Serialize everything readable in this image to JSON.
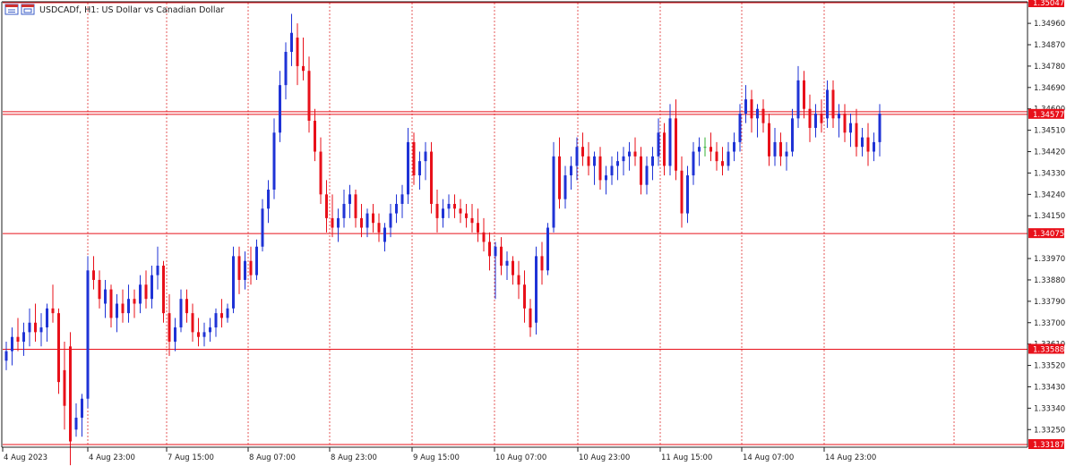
{
  "header": {
    "symbol_text": "USDCADf, H1:  US Dollar vs Canadian Dollar",
    "icon": "chart-window-icon"
  },
  "colors": {
    "bull": "#1f33d6",
    "bear": "#e8101a",
    "doji": "#33b033",
    "level": "#e8101a",
    "grid": "#e03030",
    "axis": "#1e1e1e",
    "background": "#ffffff"
  },
  "chart_data": {
    "type": "candlestick",
    "timeframe": "H1",
    "ylim": [
      1.33187,
      1.35047
    ],
    "grid": "dashed vertical lines at date labels",
    "y_ticks": [
      "1.34960",
      "1.34870",
      "1.34780",
      "1.34690",
      "1.34600",
      "1.34510",
      "1.34420",
      "1.34330",
      "1.34240",
      "1.34150",
      "1.33970",
      "1.33880",
      "1.33790",
      "1.33700",
      "1.33610",
      "1.33520",
      "1.33430",
      "1.33340",
      "1.33250"
    ],
    "x_labels": [
      "4 Aug 2023",
      "4 Aug 23:00",
      "7 Aug 15:00",
      "8 Aug 07:00",
      "8 Aug 23:00",
      "9 Aug 15:00",
      "10 Aug 07:00",
      "10 Aug 23:00",
      "11 Aug 15:00",
      "14 Aug 07:00",
      "14 Aug 23:00"
    ],
    "levels": [
      {
        "label": "1.35047",
        "value": 1.35047
      },
      {
        "label": "1.34577",
        "value": 1.34577
      },
      {
        "label": "1.34075",
        "value": 1.34075
      },
      {
        "label": "1.33588",
        "value": 1.33588
      },
      {
        "label": "1.33187",
        "value": 1.33187
      }
    ],
    "candles": [
      [
        1.3354,
        1.3362,
        1.335,
        1.3358
      ],
      [
        1.3358,
        1.3368,
        1.3352,
        1.3364
      ],
      [
        1.3364,
        1.3372,
        1.3358,
        1.3362
      ],
      [
        1.3362,
        1.337,
        1.3356,
        1.3366
      ],
      [
        1.3366,
        1.3376,
        1.336,
        1.337
      ],
      [
        1.337,
        1.3378,
        1.3362,
        1.3366
      ],
      [
        1.3366,
        1.3374,
        1.336,
        1.3368
      ],
      [
        1.3368,
        1.3378,
        1.3362,
        1.3376
      ],
      [
        1.3376,
        1.3386,
        1.337,
        1.3374
      ],
      [
        1.3374,
        1.3376,
        1.334,
        1.3345
      ],
      [
        1.335,
        1.3362,
        1.3325,
        1.3335
      ],
      [
        1.336,
        1.3366,
        1.331,
        1.332
      ],
      [
        1.3325,
        1.3336,
        1.3322,
        1.333
      ],
      [
        1.333,
        1.334,
        1.3322,
        1.3338
      ],
      [
        1.3338,
        1.3398,
        1.3334,
        1.3392
      ],
      [
        1.3392,
        1.3398,
        1.3384,
        1.3388
      ],
      [
        1.3388,
        1.3392,
        1.3376,
        1.338
      ],
      [
        1.3378,
        1.3388,
        1.3372,
        1.3384
      ],
      [
        1.3384,
        1.3386,
        1.3368,
        1.3372
      ],
      [
        1.3372,
        1.3382,
        1.3366,
        1.3378
      ],
      [
        1.3378,
        1.3384,
        1.337,
        1.3374
      ],
      [
        1.3374,
        1.3386,
        1.337,
        1.338
      ],
      [
        1.338,
        1.3384,
        1.3372,
        1.3378
      ],
      [
        1.3378,
        1.339,
        1.3374,
        1.3386
      ],
      [
        1.3386,
        1.3392,
        1.3376,
        1.338
      ],
      [
        1.338,
        1.3394,
        1.3376,
        1.339
      ],
      [
        1.339,
        1.3402,
        1.3384,
        1.3394
      ],
      [
        1.3394,
        1.3396,
        1.337,
        1.3374
      ],
      [
        1.3374,
        1.3382,
        1.3356,
        1.3362
      ],
      [
        1.3362,
        1.3372,
        1.3358,
        1.3368
      ],
      [
        1.3368,
        1.3384,
        1.3366,
        1.338
      ],
      [
        1.338,
        1.3384,
        1.337,
        1.3374
      ],
      [
        1.3374,
        1.3378,
        1.3362,
        1.3366
      ],
      [
        1.3366,
        1.3372,
        1.336,
        1.3364
      ],
      [
        1.3364,
        1.337,
        1.336,
        1.3366
      ],
      [
        1.3366,
        1.3372,
        1.3362,
        1.3368
      ],
      [
        1.3368,
        1.3376,
        1.3364,
        1.3374
      ],
      [
        1.3374,
        1.338,
        1.3368,
        1.3372
      ],
      [
        1.3372,
        1.3378,
        1.337,
        1.3376
      ],
      [
        1.3376,
        1.3402,
        1.3374,
        1.3398
      ],
      [
        1.3398,
        1.3402,
        1.3382,
        1.3388
      ],
      [
        1.3388,
        1.34,
        1.3384,
        1.3396
      ],
      [
        1.3396,
        1.3402,
        1.3386,
        1.339
      ],
      [
        1.339,
        1.3405,
        1.3388,
        1.3402
      ],
      [
        1.3402,
        1.3422,
        1.34,
        1.3418
      ],
      [
        1.3418,
        1.343,
        1.3412,
        1.3426
      ],
      [
        1.3426,
        1.3456,
        1.3422,
        1.345
      ],
      [
        1.345,
        1.3476,
        1.3446,
        1.347
      ],
      [
        1.347,
        1.3488,
        1.3464,
        1.3484
      ],
      [
        1.3484,
        1.35,
        1.3478,
        1.3492
      ],
      [
        1.349,
        1.3496,
        1.347,
        1.3478
      ],
      [
        1.3478,
        1.349,
        1.3472,
        1.3476
      ],
      [
        1.3476,
        1.3482,
        1.345,
        1.3455
      ],
      [
        1.3455,
        1.346,
        1.3438,
        1.3442
      ],
      [
        1.3442,
        1.3448,
        1.342,
        1.3424
      ],
      [
        1.3424,
        1.343,
        1.3408,
        1.3414
      ],
      [
        1.3414,
        1.3424,
        1.3406,
        1.341
      ],
      [
        1.341,
        1.3418,
        1.3404,
        1.3414
      ],
      [
        1.3414,
        1.3426,
        1.341,
        1.342
      ],
      [
        1.342,
        1.3428,
        1.3414,
        1.3424
      ],
      [
        1.3424,
        1.3426,
        1.341,
        1.3414
      ],
      [
        1.3414,
        1.342,
        1.3406,
        1.341
      ],
      [
        1.341,
        1.3418,
        1.3406,
        1.3416
      ],
      [
        1.3416,
        1.342,
        1.3408,
        1.3412
      ],
      [
        1.3412,
        1.3416,
        1.3404,
        1.3408
      ],
      [
        1.3404,
        1.3412,
        1.34,
        1.341
      ],
      [
        1.341,
        1.342,
        1.3406,
        1.3416
      ],
      [
        1.3416,
        1.3424,
        1.3412,
        1.342
      ],
      [
        1.342,
        1.3428,
        1.3414,
        1.3424
      ],
      [
        1.3424,
        1.3452,
        1.342,
        1.3446
      ],
      [
        1.3446,
        1.345,
        1.3428,
        1.3432
      ],
      [
        1.3432,
        1.3442,
        1.3426,
        1.3438
      ],
      [
        1.3438,
        1.3446,
        1.343,
        1.3442
      ],
      [
        1.3442,
        1.3446,
        1.3416,
        1.342
      ],
      [
        1.342,
        1.3426,
        1.3408,
        1.3414
      ],
      [
        1.3414,
        1.3422,
        1.341,
        1.3418
      ],
      [
        1.3418,
        1.3424,
        1.3414,
        1.342
      ],
      [
        1.342,
        1.3424,
        1.3414,
        1.3418
      ],
      [
        1.3418,
        1.3422,
        1.3412,
        1.3416
      ],
      [
        1.3416,
        1.342,
        1.341,
        1.3414
      ],
      [
        1.3414,
        1.342,
        1.3408,
        1.3412
      ],
      [
        1.3412,
        1.3418,
        1.3404,
        1.3408
      ],
      [
        1.3408,
        1.3414,
        1.34,
        1.3404
      ],
      [
        1.3404,
        1.3408,
        1.3392,
        1.3398
      ],
      [
        1.3398,
        1.3404,
        1.338,
        1.3402
      ],
      [
        1.3402,
        1.3406,
        1.339,
        1.3394
      ],
      [
        1.3394,
        1.34,
        1.3388,
        1.3396
      ],
      [
        1.3396,
        1.3398,
        1.3386,
        1.339
      ],
      [
        1.339,
        1.3396,
        1.338,
        1.3386
      ],
      [
        1.3386,
        1.3392,
        1.337,
        1.3376
      ],
      [
        1.3376,
        1.338,
        1.3364,
        1.3368
      ],
      [
        1.337,
        1.3402,
        1.3365,
        1.3398
      ],
      [
        1.3398,
        1.3404,
        1.3386,
        1.3392
      ],
      [
        1.3392,
        1.3412,
        1.339,
        1.341
      ],
      [
        1.341,
        1.3446,
        1.3408,
        1.344
      ],
      [
        1.344,
        1.3448,
        1.3418,
        1.3422
      ],
      [
        1.3422,
        1.3436,
        1.3418,
        1.3432
      ],
      [
        1.3432,
        1.344,
        1.3426,
        1.3436
      ],
      [
        1.3436,
        1.3448,
        1.343,
        1.3444
      ],
      [
        1.3444,
        1.345,
        1.3436,
        1.344
      ],
      [
        1.344,
        1.3446,
        1.3432,
        1.3436
      ],
      [
        1.3436,
        1.3442,
        1.3428,
        1.344
      ],
      [
        1.344,
        1.3444,
        1.3426,
        1.343
      ],
      [
        1.343,
        1.3436,
        1.3424,
        1.3432
      ],
      [
        1.3432,
        1.344,
        1.3428,
        1.3436
      ],
      [
        1.3436,
        1.3442,
        1.343,
        1.3438
      ],
      [
        1.3438,
        1.3444,
        1.3432,
        1.344
      ],
      [
        1.344,
        1.3446,
        1.3434,
        1.3442
      ],
      [
        1.3442,
        1.3448,
        1.3436,
        1.344
      ],
      [
        1.344,
        1.3444,
        1.3424,
        1.3428
      ],
      [
        1.3428,
        1.344,
        1.3424,
        1.3436
      ],
      [
        1.3436,
        1.3444,
        1.343,
        1.344
      ],
      [
        1.344,
        1.3456,
        1.3436,
        1.345
      ],
      [
        1.345,
        1.3454,
        1.3432,
        1.3436
      ],
      [
        1.3436,
        1.3462,
        1.3432,
        1.3456
      ],
      [
        1.3456,
        1.3464,
        1.343,
        1.3434
      ],
      [
        1.3434,
        1.344,
        1.341,
        1.3416
      ],
      [
        1.3416,
        1.3436,
        1.3412,
        1.3432
      ],
      [
        1.3432,
        1.3446,
        1.3428,
        1.3442
      ],
      [
        1.3442,
        1.3448,
        1.3436,
        1.3444
      ],
      [
        1.3444,
        1.3448,
        1.344,
        1.3444
      ],
      [
        1.3444,
        1.345,
        1.3438,
        1.3442
      ],
      [
        1.3442,
        1.3446,
        1.3434,
        1.3438
      ],
      [
        1.3438,
        1.3444,
        1.3432,
        1.3436
      ],
      [
        1.3436,
        1.3446,
        1.3434,
        1.3442
      ],
      [
        1.3442,
        1.345,
        1.3438,
        1.3446
      ],
      [
        1.3446,
        1.3462,
        1.3442,
        1.3458
      ],
      [
        1.3458,
        1.347,
        1.3454,
        1.3464
      ],
      [
        1.3464,
        1.3468,
        1.345,
        1.3456
      ],
      [
        1.3456,
        1.3462,
        1.3448,
        1.346
      ],
      [
        1.346,
        1.3464,
        1.345,
        1.3454
      ],
      [
        1.3454,
        1.3458,
        1.3436,
        1.344
      ],
      [
        1.344,
        1.3452,
        1.3436,
        1.3446
      ],
      [
        1.3446,
        1.345,
        1.3436,
        1.344
      ],
      [
        1.344,
        1.3446,
        1.3434,
        1.3442
      ],
      [
        1.3442,
        1.346,
        1.344,
        1.3456
      ],
      [
        1.3456,
        1.3478,
        1.3452,
        1.3472
      ],
      [
        1.3472,
        1.3476,
        1.3456,
        1.346
      ],
      [
        1.346,
        1.3466,
        1.3446,
        1.3452
      ],
      [
        1.3452,
        1.3462,
        1.3448,
        1.3458
      ],
      [
        1.3458,
        1.3464,
        1.345,
        1.3454
      ],
      [
        1.3456,
        1.3472,
        1.3452,
        1.3468
      ],
      [
        1.3468,
        1.3472,
        1.3452,
        1.3456
      ],
      [
        1.3456,
        1.3462,
        1.3448,
        1.3458
      ],
      [
        1.3458,
        1.3462,
        1.3446,
        1.345
      ],
      [
        1.345,
        1.3458,
        1.3444,
        1.3454
      ],
      [
        1.3454,
        1.346,
        1.344,
        1.3444
      ],
      [
        1.3444,
        1.3452,
        1.344,
        1.3448
      ],
      [
        1.3448,
        1.3454,
        1.3436,
        1.3442
      ],
      [
        1.3442,
        1.345,
        1.3438,
        1.3446
      ],
      [
        1.3446,
        1.3462,
        1.344,
        1.3458
      ]
    ]
  }
}
